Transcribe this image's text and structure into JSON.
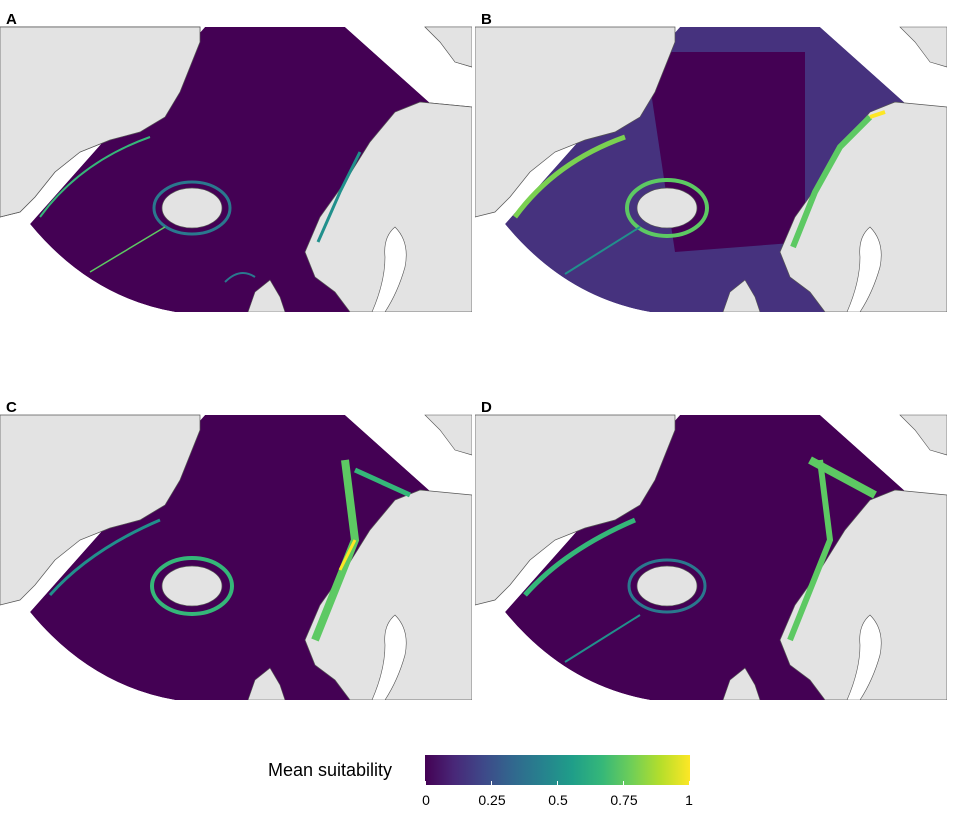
{
  "panels": [
    {
      "label": "A",
      "pattern": "coastal-narrow"
    },
    {
      "label": "B",
      "pattern": "broad-shelf"
    },
    {
      "label": "C",
      "pattern": "norway-high"
    },
    {
      "label": "D",
      "pattern": "norway-high-patchy"
    }
  ],
  "legend": {
    "title": "Mean suitability",
    "ticks": [
      "0",
      "0.25",
      "0.5",
      "0.75",
      "1"
    ],
    "tick_values": [
      0,
      0.25,
      0.5,
      0.75,
      1
    ],
    "colormap": "viridis",
    "colors": [
      "#440154",
      "#3b528b",
      "#21908c",
      "#5dc963",
      "#fde725"
    ]
  },
  "colors": {
    "land": "#e3e3e3",
    "coast_stroke": "#555555",
    "ocean_low": "#440154",
    "mid": "#21908c",
    "high": "#fde725"
  }
}
